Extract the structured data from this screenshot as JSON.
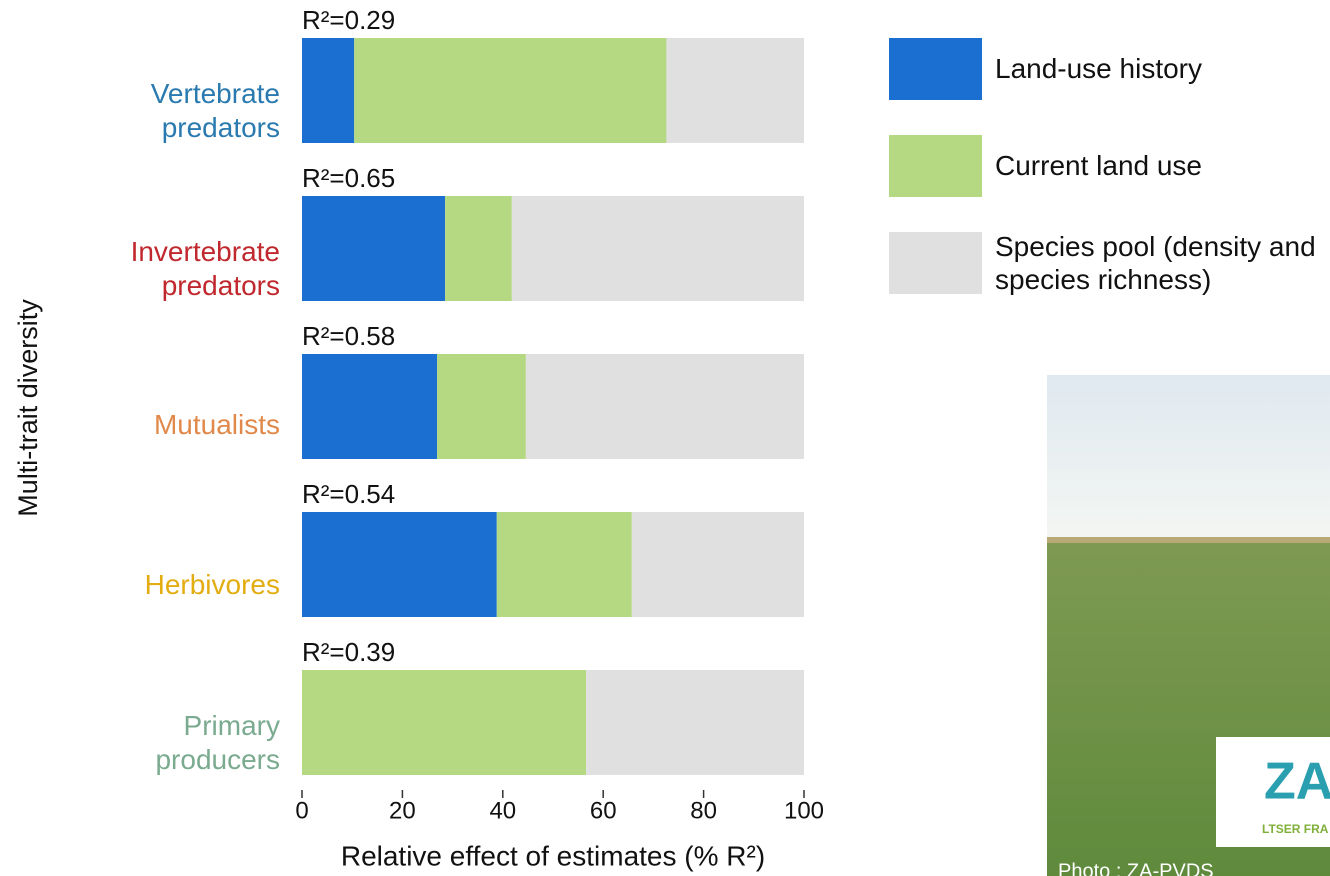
{
  "chart_data": {
    "type": "stacked-barh",
    "ylabel": "Multi-trait diversity",
    "xlabel": "Relative effect of estimates (% R²)",
    "categories": [
      "Vertebrate predators",
      "Invertebrate predators",
      "Mutualists",
      "Herbivores",
      "Primary producers"
    ],
    "category_colors": [
      "#2a7ab0",
      "#c0282e",
      "#e0894a",
      "#e3ad12",
      "#7aaa8f"
    ],
    "annotations": [
      "R²=0.29",
      "R²=0.65",
      "R²=0.58",
      "R²=0.54",
      "R²=0.39"
    ],
    "series": [
      {
        "name": "Land-use history",
        "color": "#1a6fd0",
        "values": [
          10.4,
          28.5,
          26.9,
          38.8,
          0
        ]
      },
      {
        "name": "Current land use",
        "color": "#b5d882",
        "values": [
          62.2,
          13.3,
          17.7,
          26.9,
          56.6
        ]
      },
      {
        "name": "Species pool (density and species richness)",
        "color": "#e0e0e0",
        "values": [
          27.4,
          58.2,
          55.4,
          34.3,
          43.4
        ]
      }
    ],
    "xlim": [
      0,
      100
    ],
    "xticks": [
      0,
      20,
      40,
      60,
      80,
      100
    ]
  },
  "photo": {
    "credit": "Photo : ZA-PVDS",
    "logo": "ZA",
    "logo_caption": "LTSER FRA"
  }
}
